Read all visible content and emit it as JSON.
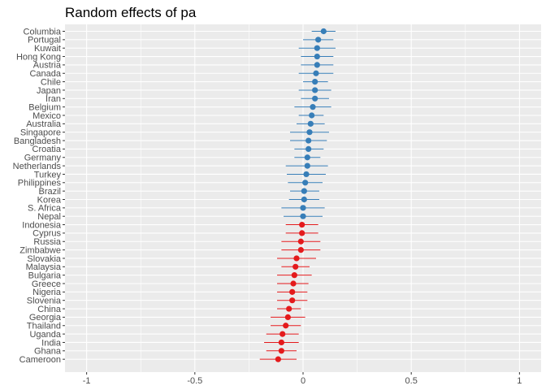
{
  "chart_data": {
    "type": "scatter",
    "subtype": "forest-plot",
    "title": "Random effects of pa",
    "xlabel": "",
    "ylabel": "",
    "xlim": [
      -1.1,
      1.1
    ],
    "xticks": [
      -1,
      -0.5,
      0,
      0.5,
      1
    ],
    "xtick_labels": [
      "-1",
      "-0.5",
      "0",
      "0.5",
      "1"
    ],
    "grid": true,
    "legend": "none",
    "colors": {
      "positive": "#377eb8",
      "negative": "#e41a1c",
      "panel": "#ebebeb",
      "grid": "#ffffff"
    },
    "points": [
      {
        "label": "Columbia",
        "estimate": 0.095,
        "low": 0.04,
        "high": 0.15
      },
      {
        "label": "Portugal",
        "estimate": 0.07,
        "low": 0.0,
        "high": 0.14
      },
      {
        "label": "Kuwait",
        "estimate": 0.065,
        "low": -0.02,
        "high": 0.15
      },
      {
        "label": "Hong Kong",
        "estimate": 0.065,
        "low": -0.01,
        "high": 0.14
      },
      {
        "label": "Austria",
        "estimate": 0.065,
        "low": -0.01,
        "high": 0.14
      },
      {
        "label": "Canada",
        "estimate": 0.06,
        "low": -0.02,
        "high": 0.14
      },
      {
        "label": "Chile",
        "estimate": 0.055,
        "low": 0.0,
        "high": 0.115
      },
      {
        "label": "Japan",
        "estimate": 0.055,
        "low": -0.02,
        "high": 0.13
      },
      {
        "label": "Iran",
        "estimate": 0.055,
        "low": -0.01,
        "high": 0.12
      },
      {
        "label": "Belgium",
        "estimate": 0.045,
        "low": -0.04,
        "high": 0.13
      },
      {
        "label": "Mexico",
        "estimate": 0.04,
        "low": -0.02,
        "high": 0.095
      },
      {
        "label": "Australia",
        "estimate": 0.035,
        "low": -0.03,
        "high": 0.1
      },
      {
        "label": "Singapore",
        "estimate": 0.03,
        "low": -0.06,
        "high": 0.12
      },
      {
        "label": "Bangladesh",
        "estimate": 0.025,
        "low": -0.06,
        "high": 0.11
      },
      {
        "label": "Croatia",
        "estimate": 0.025,
        "low": -0.04,
        "high": 0.095
      },
      {
        "label": "Germany",
        "estimate": 0.02,
        "low": -0.04,
        "high": 0.08
      },
      {
        "label": "Netherlands",
        "estimate": 0.02,
        "low": -0.08,
        "high": 0.115
      },
      {
        "label": "Turkey",
        "estimate": 0.015,
        "low": -0.075,
        "high": 0.105
      },
      {
        "label": "Philippines",
        "estimate": 0.01,
        "low": -0.07,
        "high": 0.09
      },
      {
        "label": "Brazil",
        "estimate": 0.005,
        "low": -0.06,
        "high": 0.075
      },
      {
        "label": "Korea",
        "estimate": 0.005,
        "low": -0.065,
        "high": 0.075
      },
      {
        "label": "S. Africa",
        "estimate": 0.0,
        "low": -0.1,
        "high": 0.1
      },
      {
        "label": "Nepal",
        "estimate": 0.0,
        "low": -0.09,
        "high": 0.09
      },
      {
        "label": "Indonesia",
        "estimate": -0.005,
        "low": -0.08,
        "high": 0.07
      },
      {
        "label": "Cyprus",
        "estimate": -0.005,
        "low": -0.08,
        "high": 0.07
      },
      {
        "label": "Russia",
        "estimate": -0.01,
        "low": -0.1,
        "high": 0.08
      },
      {
        "label": "Zimbabwe",
        "estimate": -0.01,
        "low": -0.1,
        "high": 0.08
      },
      {
        "label": "Slovakia",
        "estimate": -0.03,
        "low": -0.12,
        "high": 0.06
      },
      {
        "label": "Malaysia",
        "estimate": -0.035,
        "low": -0.1,
        "high": 0.03
      },
      {
        "label": "Bulgaria",
        "estimate": -0.04,
        "low": -0.12,
        "high": 0.04
      },
      {
        "label": "Greece",
        "estimate": -0.045,
        "low": -0.12,
        "high": 0.025
      },
      {
        "label": "Nigeria",
        "estimate": -0.05,
        "low": -0.12,
        "high": 0.02
      },
      {
        "label": "Slovenia",
        "estimate": -0.05,
        "low": -0.12,
        "high": 0.02
      },
      {
        "label": "China",
        "estimate": -0.065,
        "low": -0.12,
        "high": -0.01
      },
      {
        "label": "Georgia",
        "estimate": -0.07,
        "low": -0.15,
        "high": 0.01
      },
      {
        "label": "Thailand",
        "estimate": -0.08,
        "low": -0.15,
        "high": -0.01
      },
      {
        "label": "Uganda",
        "estimate": -0.095,
        "low": -0.17,
        "high": -0.02
      },
      {
        "label": "India",
        "estimate": -0.1,
        "low": -0.18,
        "high": -0.02
      },
      {
        "label": "Ghana",
        "estimate": -0.1,
        "low": -0.17,
        "high": -0.03
      },
      {
        "label": "Cameroon",
        "estimate": -0.115,
        "low": -0.2,
        "high": -0.03
      }
    ]
  }
}
